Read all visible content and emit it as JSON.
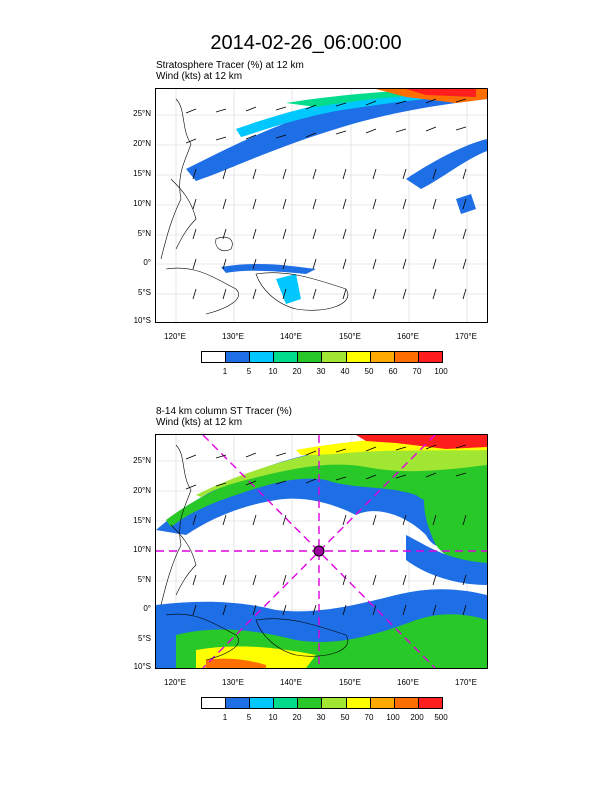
{
  "title": "2014-02-26_06:00:00",
  "panels": [
    {
      "id": "top",
      "subtitle_line1": "Stratosphere Tracer   (%)    at  12 km",
      "subtitle_line2": "Wind   (kts)     at  12 km",
      "lat_labels": [
        "25°N",
        "20°N",
        "15°N",
        "10°N",
        "5°N",
        "0°",
        "5°S",
        "10°S"
      ],
      "lon_labels": [
        "120°E",
        "130°E",
        "140°E",
        "150°E",
        "160°E",
        "170°E"
      ],
      "colorbar_labels": [
        "1",
        "5",
        "10",
        "20",
        "30",
        "40",
        "50",
        "60",
        "70",
        "100"
      ],
      "colorbar_colors": [
        "#ffffff",
        "#1e6ee6",
        "#00c8ff",
        "#00dc8c",
        "#28c828",
        "#a0e632",
        "#ffff00",
        "#ffaa00",
        "#ff6e00",
        "#ff1e1e"
      ]
    },
    {
      "id": "bottom",
      "subtitle_line1": "8-14 km column ST Tracer   (%)",
      "subtitle_line2": "Wind   (kts)     at  12 km",
      "lat_labels": [
        "25°N",
        "20°N",
        "15°N",
        "10°N",
        "5°N",
        "0°",
        "5°S",
        "10°S"
      ],
      "lon_labels": [
        "120°E",
        "130°E",
        "140°E",
        "150°E",
        "160°E",
        "170°E"
      ],
      "colorbar_labels": [
        "1",
        "5",
        "10",
        "20",
        "30",
        "50",
        "70",
        "100",
        "200",
        "500"
      ],
      "colorbar_colors": [
        "#ffffff",
        "#1e6ee6",
        "#00c8ff",
        "#00dc8c",
        "#28c828",
        "#a0e632",
        "#ffff00",
        "#ffaa00",
        "#ff6e00",
        "#ff1e1e"
      ]
    }
  ]
}
